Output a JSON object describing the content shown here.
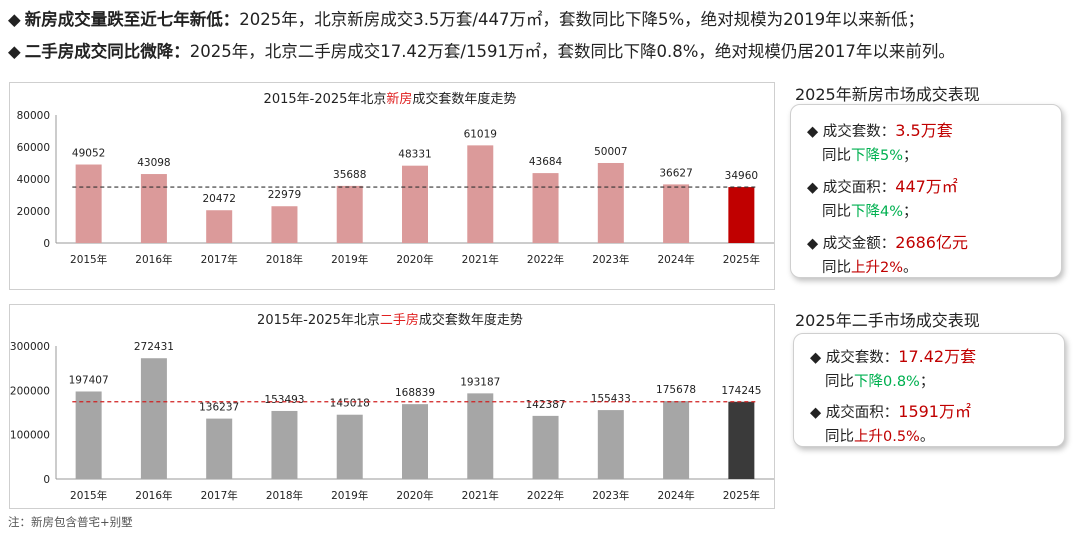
{
  "headlines": [
    {
      "lead": "新房成交量跌至近七年新低",
      "sep": "：",
      "body": "2025年，北京新房成交3.5万套/447万㎡，套数同比下降5%，绝对规模为2019年以来新低；"
    },
    {
      "lead": "二手房成交同比微降",
      "sep": "：",
      "body": "2025年，北京二手房成交17.42万套/1591万㎡，套数同比下降0.8%，绝对规模仍居2017年以来前列。"
    }
  ],
  "bullet_glyph": "◆",
  "chart_data": [
    {
      "type": "bar",
      "title_prefix": "2015年-2025年北京",
      "title_highlight": "新房",
      "title_suffix": "成交套数年度走势",
      "categories": [
        "2015年",
        "2016年",
        "2017年",
        "2018年",
        "2019年",
        "2020年",
        "2021年",
        "2022年",
        "2023年",
        "2024年",
        "2025年"
      ],
      "values": [
        49052,
        43098,
        20472,
        22979,
        35688,
        48331,
        61019,
        43684,
        50007,
        36627,
        34960
      ],
      "ylim": [
        0,
        80000
      ],
      "yticks": [
        "80000",
        "60000",
        "40000",
        "20000",
        "0"
      ],
      "reference_line": 34960,
      "colors": {
        "bar": "#db9a9a",
        "highlight": "#c00000",
        "refline": "#333333",
        "title_highlight": "#e02020"
      }
    },
    {
      "type": "bar",
      "title_prefix": "2015年-2025年北京",
      "title_highlight": "二手房",
      "title_suffix": "成交套数年度走势",
      "categories": [
        "2015年",
        "2016年",
        "2017年",
        "2018年",
        "2019年",
        "2020年",
        "2021年",
        "2022年",
        "2023年",
        "2024年",
        "2025年"
      ],
      "values": [
        197407,
        272431,
        136237,
        153493,
        145018,
        168839,
        193187,
        142387,
        155433,
        175678,
        174245
      ],
      "ylim": [
        0,
        300000
      ],
      "yticks": [
        "300000",
        "200000",
        "100000",
        "0"
      ],
      "reference_line": 174245,
      "colors": {
        "bar": "#a6a6a6",
        "highlight": "#3a3a3a",
        "refline": "#d02020",
        "title_highlight": "#e02020"
      }
    }
  ],
  "side": {
    "new_title": "2025年新房市场成交表现",
    "new_stats": [
      {
        "label": "成交套数：",
        "value": "3.5万套",
        "sub_prefix": "同比",
        "sub_change": "下降5%",
        "sub_suffix": "；",
        "trend": "down"
      },
      {
        "label": "成交面积：",
        "value": "447万㎡",
        "sub_prefix": "同比",
        "sub_change": "下降4%",
        "sub_suffix": "；",
        "trend": "down"
      },
      {
        "label": "成交金额：",
        "value": "2686亿元",
        "sub_prefix": "同比",
        "sub_change": "上升2%",
        "sub_suffix": "。",
        "trend": "up"
      }
    ],
    "second_title": "2025年二手市场成交表现",
    "second_stats": [
      {
        "label": "成交套数：",
        "value": "17.42万套",
        "sub_prefix": "同比",
        "sub_change": "下降0.8%",
        "sub_suffix": "；",
        "trend": "down"
      },
      {
        "label": "成交面积：",
        "value": "1591万㎡",
        "sub_prefix": "同比",
        "sub_change": "上升0.5%",
        "sub_suffix": "。",
        "trend": "up"
      }
    ]
  },
  "note": "注：新房包含普宅+别墅"
}
